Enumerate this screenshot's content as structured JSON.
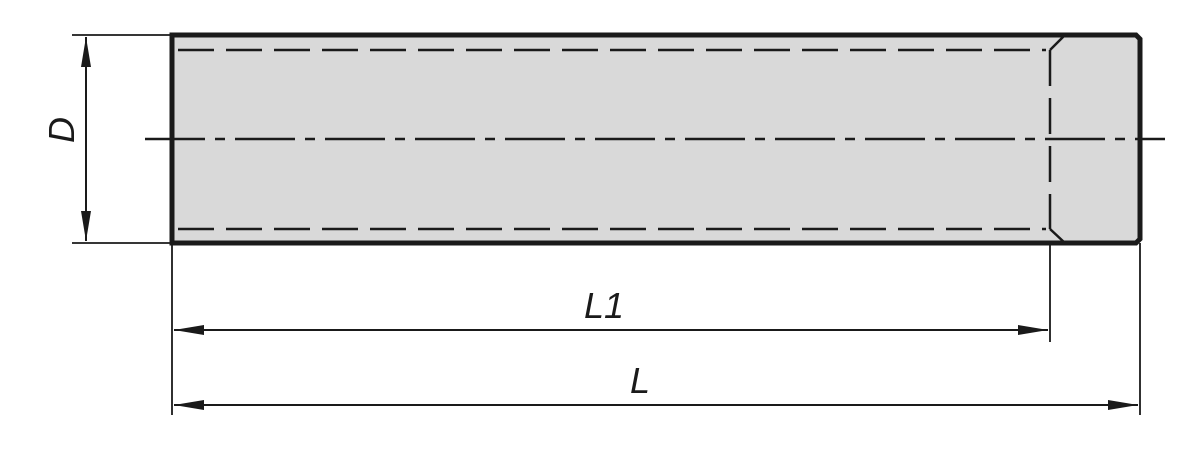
{
  "drawing": {
    "labels": {
      "diameter": "D",
      "thread_length": "L1",
      "total_length": "L"
    },
    "colors": {
      "fill": "#d9d9d9",
      "line": "#1a1a1a"
    }
  }
}
